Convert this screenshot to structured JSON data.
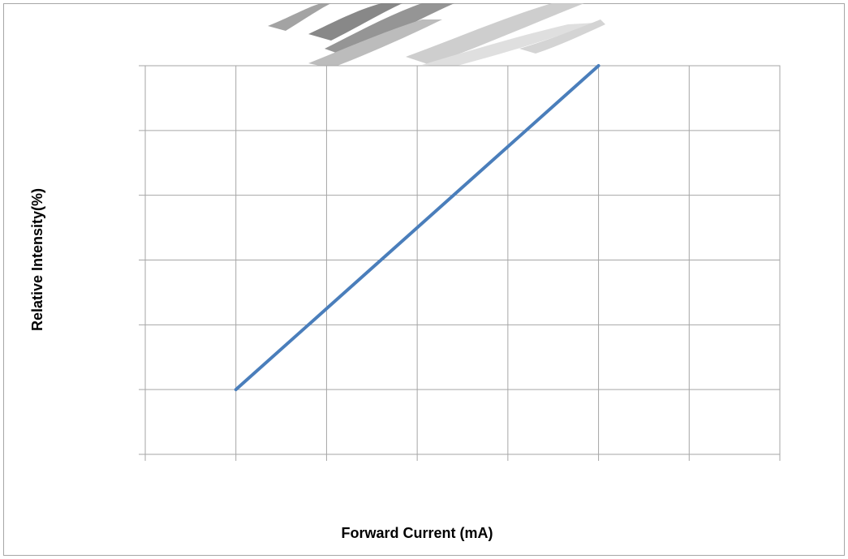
{
  "chart_data": {
    "type": "line",
    "title": "",
    "xlabel": "Forward Current (mA)",
    "ylabel": "Relative Intensity(%)",
    "xlim": [
      0,
      7
    ],
    "ylim": [
      0,
      6
    ],
    "x_divisions": 7,
    "y_divisions": 6,
    "grid": true,
    "legend": "none",
    "tick_labels_visible": false,
    "series": [
      {
        "x": [
          1,
          5
        ],
        "y": [
          1,
          6
        ],
        "color": "#4a7ebb"
      }
    ]
  },
  "decor": {
    "header_image": "partial-led-illustration",
    "grid_color": "#a6a6a6",
    "line_color": "#4a7ebb"
  }
}
